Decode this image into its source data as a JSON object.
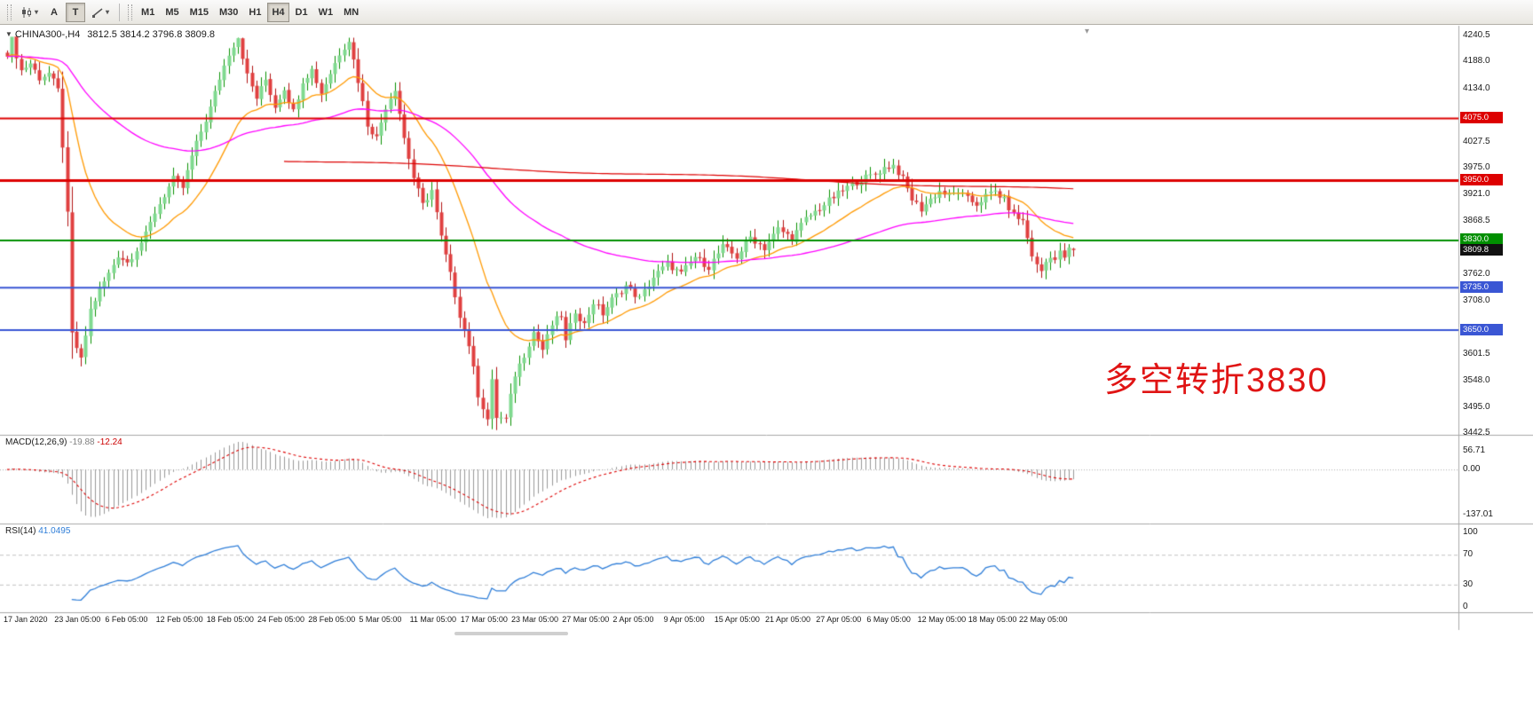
{
  "toolbar": {
    "cursor_label": "A",
    "text_label": "T",
    "timeframes": [
      {
        "label": "M1"
      },
      {
        "label": "M5"
      },
      {
        "label": "M15"
      },
      {
        "label": "M30"
      },
      {
        "label": "H1"
      },
      {
        "label": "H4",
        "active": true
      },
      {
        "label": "D1"
      },
      {
        "label": "W1"
      },
      {
        "label": "MN"
      }
    ]
  },
  "chart": {
    "header": {
      "symbol": "CHINA300-,H4",
      "ohlc": "3812.5 3814.2 3796.8 3809.8"
    },
    "shift_marker": "▾",
    "annotation": {
      "text": "多空转折3830",
      "color": "#e01414"
    },
    "last_price_label": "3809.8",
    "axis": {
      "price_ticks": [
        "4240.5",
        "4188.0",
        "4134.0",
        "4027.5",
        "3975.0",
        "3921.0",
        "3868.5",
        "3762.0",
        "3708.0",
        "3601.5",
        "3548.0",
        "3495.0",
        "3442.5"
      ],
      "time_labels": [
        "17 Jan 2020",
        "23 Jan 05:00",
        "6 Feb 05:00",
        "12 Feb 05:00",
        "18 Feb 05:00",
        "24 Feb 05:00",
        "28 Feb 05:00",
        "5 Mar 05:00",
        "11 Mar 05:00",
        "17 Mar 05:00",
        "23 Mar 05:00",
        "27 Mar 05:00",
        "2 Apr 05:00",
        "9 Apr 05:00",
        "15 Apr 05:00",
        "21 Apr 05:00",
        "27 Apr 05:00",
        "6 May 05:00",
        "12 May 05:00",
        "18 May 05:00",
        "22 May 05:00"
      ]
    }
  },
  "macd": {
    "title": "MACD(12,26,9)",
    "main": "-19.88",
    "signal": "-12.24",
    "scale": [
      "56.71",
      "0.00",
      "-137.01"
    ]
  },
  "rsi": {
    "title": "RSI(14)",
    "value": "41.0495",
    "scale": [
      "100",
      "70",
      "30",
      "0"
    ],
    "levels": [
      70,
      30
    ]
  },
  "chart_data": {
    "type": "candlestick",
    "symbol": "CHINA300-",
    "timeframe": "H4",
    "n_candles": 232,
    "bars_per_time_label": 11,
    "price_range_visible": [
      3442.5,
      4240.5
    ],
    "last_ohlc": {
      "open": 3812.5,
      "high": 3814.2,
      "low": 3796.8,
      "close": 3809.8
    },
    "close_path_keypoints": [
      [
        0,
        4205
      ],
      [
        1,
        4232
      ],
      [
        3,
        4170
      ],
      [
        5,
        4185
      ],
      [
        7,
        4155
      ],
      [
        9,
        4165
      ],
      [
        11,
        4130
      ],
      [
        12,
        4020
      ],
      [
        13,
        3880
      ],
      [
        14,
        3640
      ],
      [
        16,
        3588
      ],
      [
        18,
        3690
      ],
      [
        20,
        3730
      ],
      [
        22,
        3762
      ],
      [
        24,
        3800
      ],
      [
        26,
        3785
      ],
      [
        28,
        3812
      ],
      [
        30,
        3840
      ],
      [
        32,
        3886
      ],
      [
        34,
        3920
      ],
      [
        36,
        3952
      ],
      [
        38,
        3935
      ],
      [
        40,
        3998
      ],
      [
        42,
        4048
      ],
      [
        44,
        4095
      ],
      [
        46,
        4155
      ],
      [
        48,
        4205
      ],
      [
        50,
        4238
      ],
      [
        52,
        4160
      ],
      [
        54,
        4115
      ],
      [
        56,
        4152
      ],
      [
        58,
        4098
      ],
      [
        60,
        4135
      ],
      [
        62,
        4088
      ],
      [
        64,
        4150
      ],
      [
        66,
        4172
      ],
      [
        68,
        4125
      ],
      [
        70,
        4165
      ],
      [
        72,
        4205
      ],
      [
        74,
        4232
      ],
      [
        76,
        4150
      ],
      [
        78,
        4062
      ],
      [
        80,
        4035
      ],
      [
        82,
        4098
      ],
      [
        84,
        4135
      ],
      [
        86,
        4035
      ],
      [
        88,
        3955
      ],
      [
        90,
        3900
      ],
      [
        92,
        3930
      ],
      [
        94,
        3835
      ],
      [
        96,
        3760
      ],
      [
        98,
        3680
      ],
      [
        100,
        3620
      ],
      [
        102,
        3520
      ],
      [
        104,
        3470
      ],
      [
        105,
        3545
      ],
      [
        106,
        3475
      ],
      [
        108,
        3470
      ],
      [
        110,
        3560
      ],
      [
        112,
        3600
      ],
      [
        114,
        3645
      ],
      [
        116,
        3610
      ],
      [
        118,
        3660
      ],
      [
        120,
        3680
      ],
      [
        121,
        3625
      ],
      [
        123,
        3688
      ],
      [
        125,
        3660
      ],
      [
        127,
        3705
      ],
      [
        129,
        3682
      ],
      [
        131,
        3710
      ],
      [
        134,
        3738
      ],
      [
        137,
        3712
      ],
      [
        140,
        3755
      ],
      [
        143,
        3782
      ],
      [
        146,
        3762
      ],
      [
        149,
        3796
      ],
      [
        152,
        3776
      ],
      [
        155,
        3816
      ],
      [
        158,
        3796
      ],
      [
        161,
        3836
      ],
      [
        164,
        3814
      ],
      [
        167,
        3852
      ],
      [
        170,
        3834
      ],
      [
        173,
        3872
      ],
      [
        176,
        3894
      ],
      [
        179,
        3916
      ],
      [
        182,
        3936
      ],
      [
        185,
        3952
      ],
      [
        188,
        3962
      ],
      [
        190,
        3975
      ],
      [
        192,
        3980
      ],
      [
        194,
        3952
      ],
      [
        196,
        3912
      ],
      [
        198,
        3892
      ],
      [
        200,
        3912
      ],
      [
        202,
        3928
      ],
      [
        204,
        3918
      ],
      [
        206,
        3928
      ],
      [
        208,
        3912
      ],
      [
        210,
        3902
      ],
      [
        212,
        3918
      ],
      [
        214,
        3928
      ],
      [
        216,
        3910
      ],
      [
        218,
        3880
      ],
      [
        220,
        3868
      ],
      [
        222,
        3800
      ],
      [
        223,
        3778
      ],
      [
        224,
        3768
      ],
      [
        225,
        3786
      ],
      [
        226,
        3800
      ],
      [
        227,
        3790
      ],
      [
        228,
        3804
      ],
      [
        229,
        3796
      ],
      [
        230,
        3810
      ],
      [
        231,
        3809.8
      ]
    ],
    "overlays": [
      {
        "name": "ma-fast",
        "kind": "ema",
        "period": 20,
        "color": "#ff9900"
      },
      {
        "name": "ma-slow",
        "kind": "ema",
        "period": 80,
        "color": "#ff00ff"
      },
      {
        "name": "ma-long",
        "kind": "linear-approx",
        "from": [
          60,
          3990
        ],
        "to": [
          231,
          3930
        ],
        "color": "#dd0000"
      }
    ],
    "hlines": [
      {
        "label": "4075.0",
        "price": 4075.0,
        "color": "#dd0000",
        "width": 2
      },
      {
        "label": "3950.0",
        "price": 3950.0,
        "color": "#dd0000",
        "width": 3
      },
      {
        "label": "3830.0",
        "price": 3830.0,
        "color": "#008f00",
        "width": 2
      },
      {
        "label": "3735.0",
        "price": 3735.0,
        "color": "#3a56d4",
        "width": 2
      },
      {
        "label": "3650.0",
        "price": 3650.0,
        "color": "#3a56d4",
        "width": 2
      }
    ],
    "indicators": [
      {
        "name": "MACD",
        "params": "12,26,9",
        "last_main": -19.88,
        "last_signal": -12.24,
        "scale_values": [
          56.71,
          0.0,
          -137.01
        ],
        "hist_color": "#999999",
        "signal_color": "#dd0000"
      },
      {
        "name": "RSI",
        "params": "14",
        "last": 41.0495,
        "scale_values": [
          100,
          70,
          30,
          0
        ],
        "line_color": "#2f7ed8"
      }
    ],
    "candle_colors": {
      "up_edge": "#089000",
      "up_fill": "#7fd98f",
      "down_edge": "#b01010",
      "down_fill": "#e04040"
    }
  }
}
